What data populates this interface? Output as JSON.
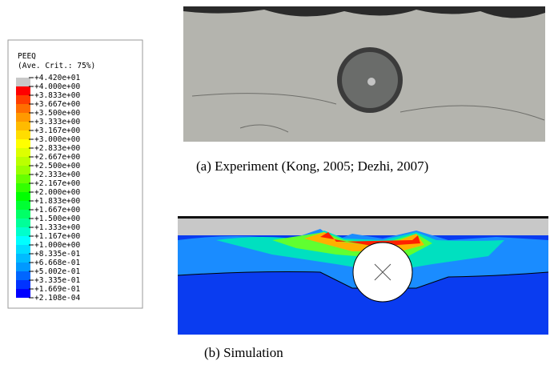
{
  "legend": {
    "title": "PEEQ",
    "subtitle": "(Ave. Crit.: 75%)",
    "labels": [
      "+4.420e+01",
      "+4.000e+00",
      "+3.833e+00",
      "+3.667e+00",
      "+3.500e+00",
      "+3.333e+00",
      "+3.167e+00",
      "+3.000e+00",
      "+2.833e+00",
      "+2.667e+00",
      "+2.500e+00",
      "+2.333e+00",
      "+2.167e+00",
      "+2.000e+00",
      "+1.833e+00",
      "+1.667e+00",
      "+1.500e+00",
      "+1.333e+00",
      "+1.167e+00",
      "+1.000e+00",
      "+8.335e-01",
      "+6.668e-01",
      "+5.002e-01",
      "+3.335e-01",
      "+1.669e-01",
      "+2.108e-04"
    ],
    "colors": [
      "#c8c8c8",
      "#ff0000",
      "#ff3d00",
      "#ff6e00",
      "#ff9900",
      "#ffbb00",
      "#ffdd00",
      "#ffff00",
      "#ddff00",
      "#bbff00",
      "#99ff00",
      "#66ff00",
      "#33ff00",
      "#00ff00",
      "#00ff33",
      "#00ff66",
      "#00ff99",
      "#00ffcc",
      "#00ffff",
      "#00ddff",
      "#00bbff",
      "#0099ff",
      "#0066ff",
      "#0033ff",
      "#0000ff"
    ]
  },
  "figures": [
    {
      "caption": "(a) Experiment (Kong, 2005; Dezhi, 2007)"
    },
    {
      "caption": "(b) Simulation"
    }
  ]
}
